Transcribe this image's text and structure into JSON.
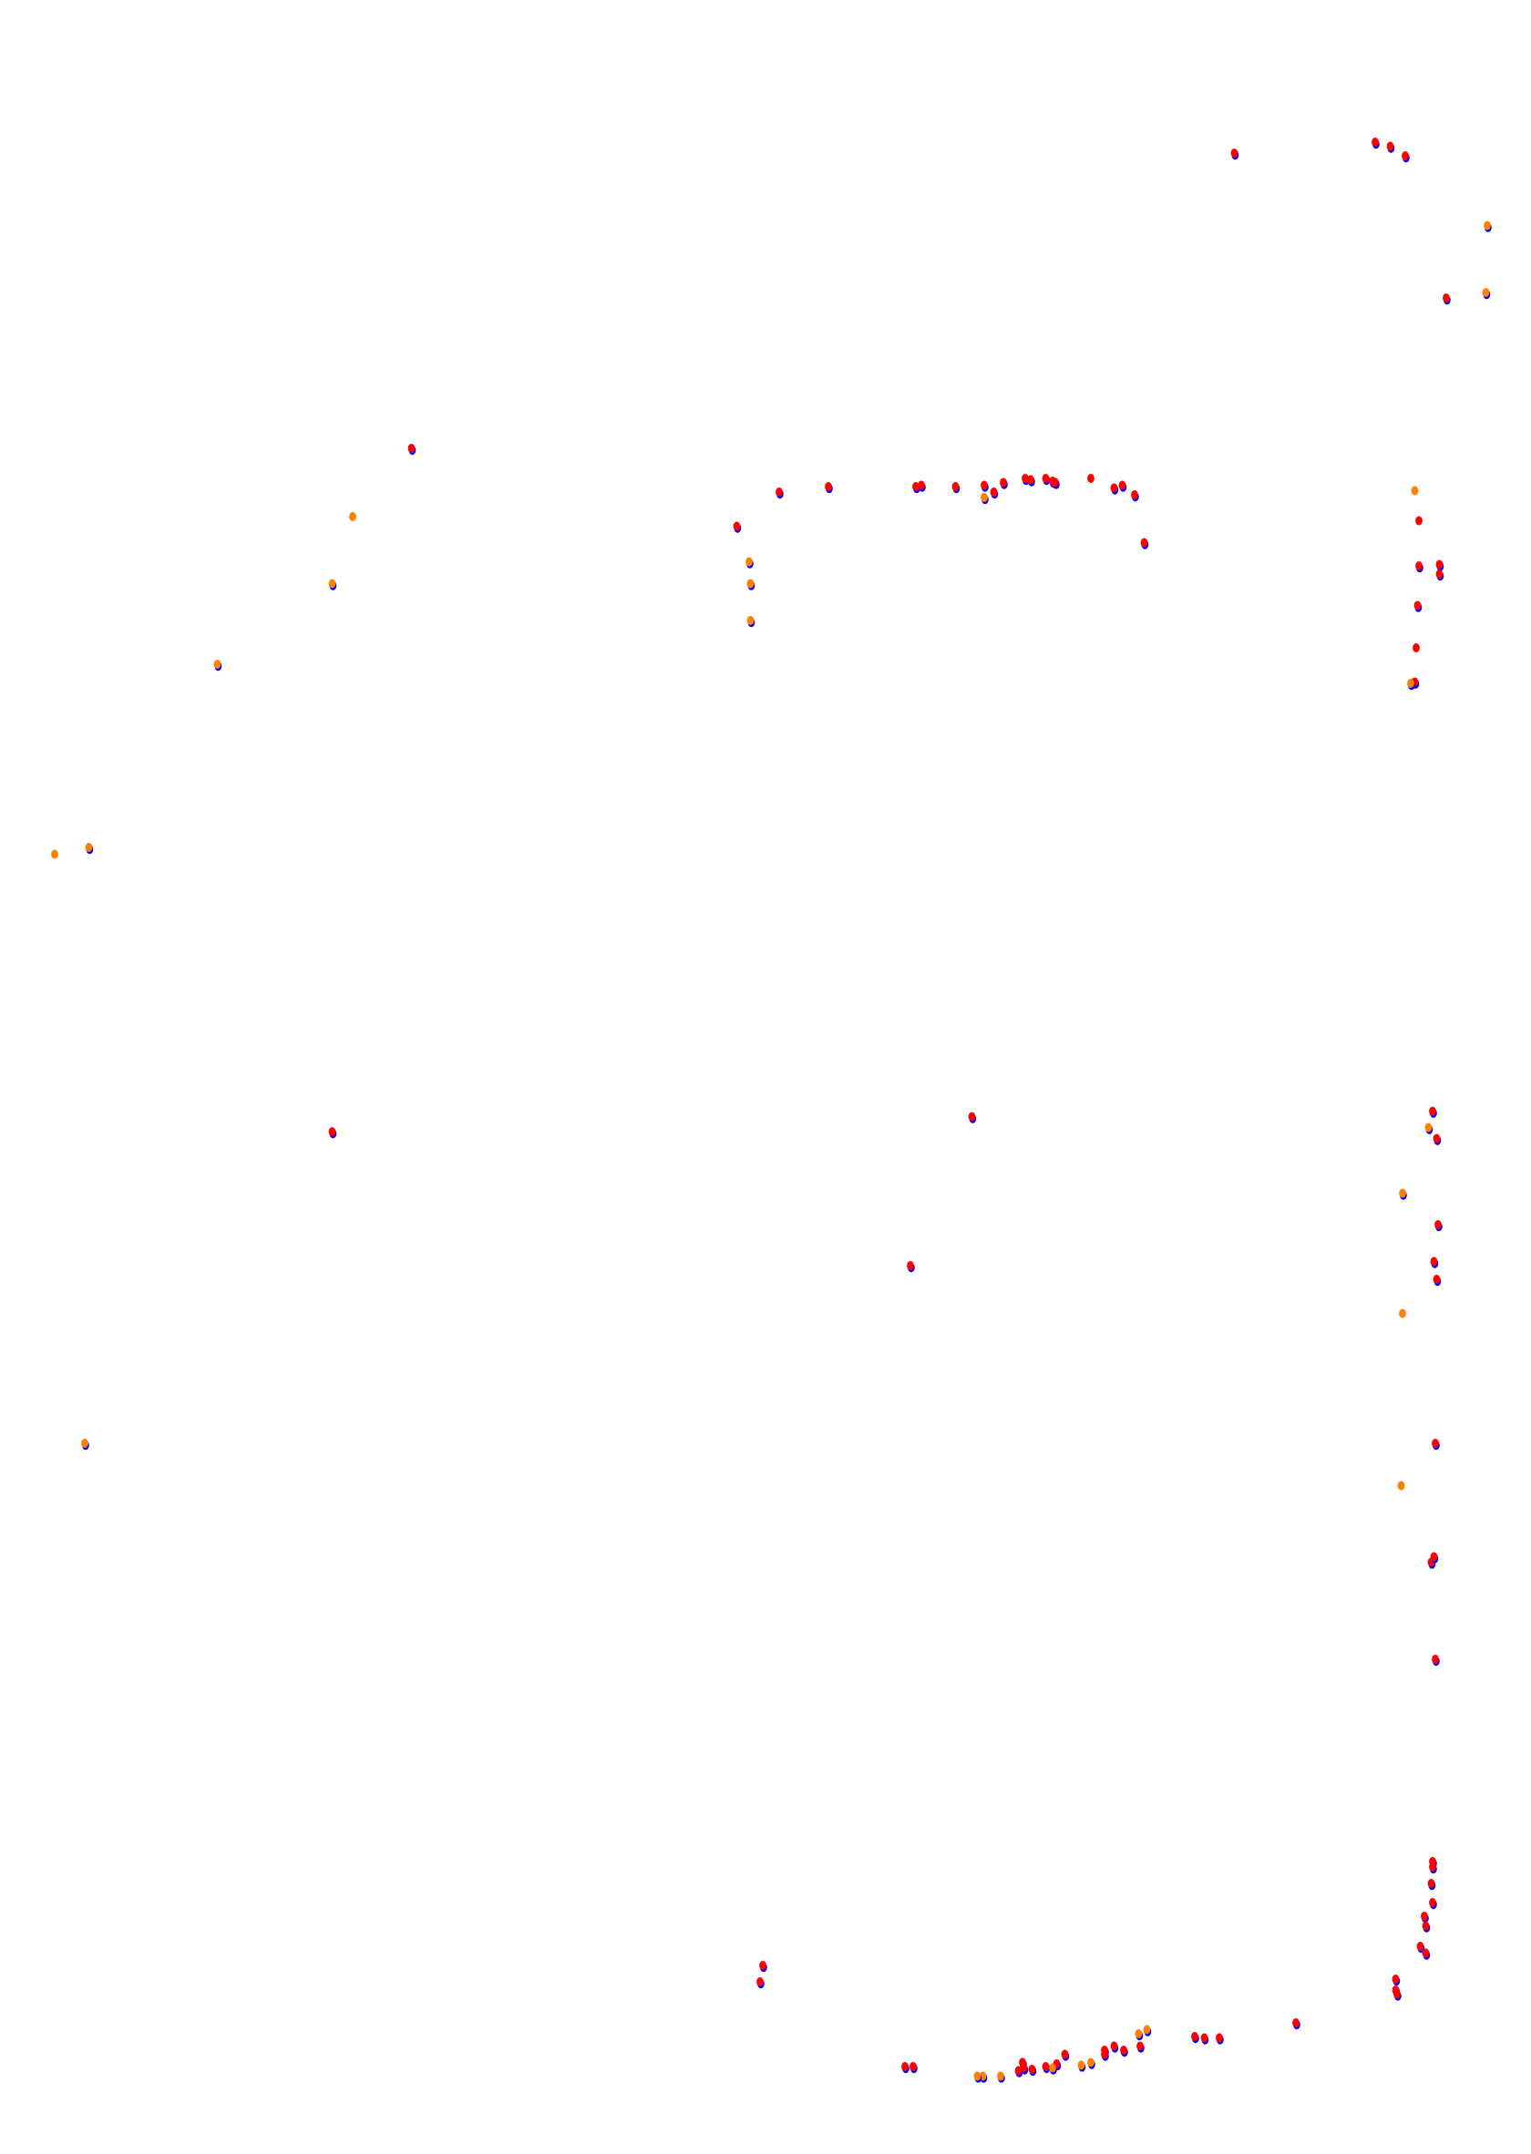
{
  "chart_data": {
    "type": "scatter",
    "title": "",
    "xlabel": "",
    "ylabel": "",
    "axes_visible": false,
    "grid": false,
    "legend": "none",
    "xlim": [
      0,
      1120
    ],
    "ylim": [
      1576,
      0
    ],
    "colors": {
      "base": "#0000ff",
      "red": "#ff0000",
      "orange": "#ff8000"
    },
    "series": [
      {
        "color_key": "red",
        "points": [
          [
            903,
            112
          ],
          [
            1006,
            104
          ],
          [
            1017,
            107
          ],
          [
            1028,
            114
          ],
          [
            1058,
            218
          ],
          [
            301,
            328
          ],
          [
            539,
            385
          ],
          [
            570,
            360
          ],
          [
            606,
            356
          ],
          [
            670,
            356
          ],
          [
            674,
            355
          ],
          [
            699,
            356
          ],
          [
            720,
            355
          ],
          [
            727,
            360
          ],
          [
            734,
            353
          ],
          [
            750,
            350
          ],
          [
            754,
            351
          ],
          [
            765,
            350
          ],
          [
            770,
            352
          ],
          [
            772,
            353
          ],
          [
            798,
            350
          ],
          [
            815,
            357
          ],
          [
            821,
            355
          ],
          [
            830,
            362
          ],
          [
            837,
            397
          ],
          [
            1038,
            381
          ],
          [
            1038,
            414
          ],
          [
            1053,
            413
          ],
          [
            1053,
            420
          ],
          [
            1037,
            443
          ],
          [
            1036,
            474
          ],
          [
            1035,
            499
          ],
          [
            243,
            828
          ],
          [
            711,
            817
          ],
          [
            1048,
            813
          ],
          [
            1051,
            833
          ],
          [
            1052,
            896
          ],
          [
            1049,
            923
          ],
          [
            1051,
            936
          ],
          [
            666,
            926
          ],
          [
            1050,
            1056
          ],
          [
            1047,
            1143
          ],
          [
            1049,
            1139
          ],
          [
            1050,
            1214
          ],
          [
            1048,
            1362
          ],
          [
            1048,
            1366
          ],
          [
            1047,
            1378
          ],
          [
            1048,
            1392
          ],
          [
            1042,
            1402
          ],
          [
            1043,
            1409
          ],
          [
            1039,
            1424
          ],
          [
            1043,
            1429
          ],
          [
            1021,
            1448
          ],
          [
            1021,
            1456
          ],
          [
            1022,
            1459
          ],
          [
            948,
            1480
          ],
          [
            892,
            1491
          ],
          [
            881,
            1491
          ],
          [
            874,
            1490
          ],
          [
            834,
            1497
          ],
          [
            822,
            1500
          ],
          [
            815,
            1497
          ],
          [
            808,
            1500
          ],
          [
            808,
            1503
          ],
          [
            779,
            1503
          ],
          [
            773,
            1510
          ],
          [
            765,
            1512
          ],
          [
            755,
            1514
          ],
          [
            748,
            1509
          ],
          [
            749,
            1513
          ],
          [
            745,
            1515
          ],
          [
            668,
            1512
          ],
          [
            662,
            1512
          ],
          [
            558,
            1438
          ],
          [
            556,
            1450
          ]
        ]
      },
      {
        "color_key": "orange",
        "points": [
          [
            1088,
            165
          ],
          [
            1087,
            214
          ],
          [
            258,
            378
          ],
          [
            243,
            427
          ],
          [
            159,
            486
          ],
          [
            40,
            625
          ],
          [
            65,
            620
          ],
          [
            720,
            364
          ],
          [
            548,
            411
          ],
          [
            549,
            427
          ],
          [
            549,
            454
          ],
          [
            1035,
            359
          ],
          [
            1032,
            500
          ],
          [
            1045,
            825
          ],
          [
            1026,
            873
          ],
          [
            1026,
            961
          ],
          [
            62,
            1056
          ],
          [
            1025,
            1087
          ],
          [
            839,
            1485
          ],
          [
            833,
            1488
          ],
          [
            798,
            1509
          ],
          [
            791,
            1511
          ],
          [
            770,
            1513
          ],
          [
            732,
            1519
          ],
          [
            719,
            1519
          ],
          [
            715,
            1519
          ]
        ]
      }
    ]
  }
}
